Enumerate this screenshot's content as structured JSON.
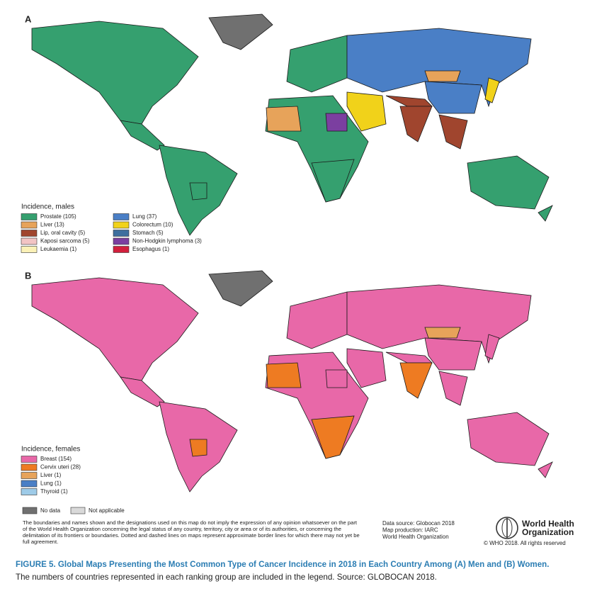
{
  "panels": [
    {
      "label": "A",
      "legend_title": "Incidence, males",
      "legend": [
        {
          "label": "Prostate (105)",
          "color": "#35a06f"
        },
        {
          "label": "Liver (13)",
          "color": "#e7a35a"
        },
        {
          "label": "Lip, oral cavity (5)",
          "color": "#a0452e"
        },
        {
          "label": "Kaposi sarcoma (5)",
          "color": "#f2c4c4"
        },
        {
          "label": "Leukaemia (1)",
          "color": "#fbf1b7"
        },
        {
          "label": "Lung (37)",
          "color": "#4a7fc6"
        },
        {
          "label": "Colorectum (10)",
          "color": "#f1d21a"
        },
        {
          "label": "Stomach (5)",
          "color": "#3d6f9e"
        },
        {
          "label": "Non-Hodgkin lymphoma (3)",
          "color": "#7b3fa0"
        },
        {
          "label": "Esophagus (1)",
          "color": "#d21f3c"
        }
      ]
    },
    {
      "label": "B",
      "legend_title": "Incidence, females",
      "legend": [
        {
          "label": "Breast (154)",
          "color": "#e868a8"
        },
        {
          "label": "Cervix uteri (28)",
          "color": "#ee7b22"
        },
        {
          "label": "Liver (1)",
          "color": "#e7a35a"
        },
        {
          "label": "Lung (1)",
          "color": "#4a7fc6"
        },
        {
          "label": "Thyroid (1)",
          "color": "#9ecbe8"
        }
      ]
    }
  ],
  "extra_legend": [
    {
      "label": "No data",
      "color": "#707070"
    },
    {
      "label": "Not applicable",
      "color": "#d9d9d9"
    }
  ],
  "disclaimer": "The boundaries and names shown and the designations used on this map do not imply the expression of any opinion whatsoever on the part of the World Health Organization concerning the legal status of any country, territory, city or area or of its authorities, or concerning the delimitation of its frontiers or boundaries. Dotted and dashed lines on maps represent approximate border lines for which there may not yet be full agreement.",
  "data_source": [
    "Data source: Globocan 2018",
    "Map production: IARC",
    "World Health Organization"
  ],
  "who_name": [
    "World Health",
    "Organization"
  ],
  "copyright": "© WHO 2018. All rights reserved",
  "caption": {
    "title": "FIGURE 5. Global Maps Presenting the Most Common Type of Cancer Incidence in 2018 in Each Country Among (A) Men and (B) Women.",
    "text": "The numbers of countries represented in each ranking group are included in the legend. Source: GLOBOCAN 2018."
  }
}
